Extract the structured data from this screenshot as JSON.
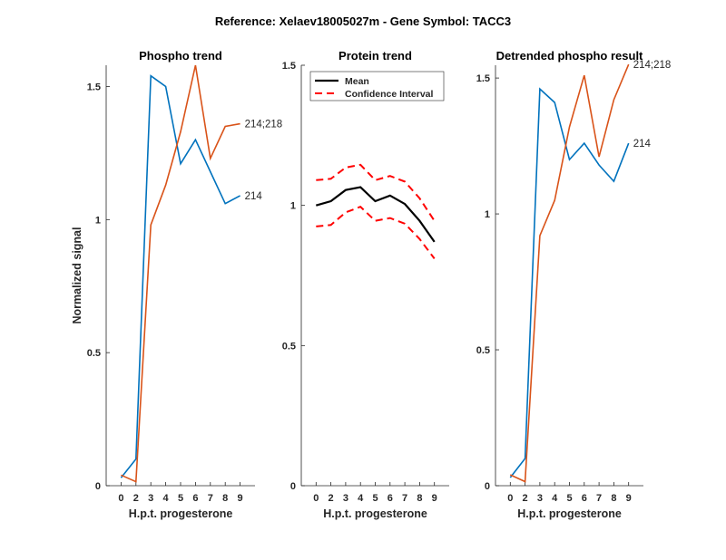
{
  "figure_title": "Reference:  Xelaev18005027m - Gene Symbol:  TACC3",
  "colors": {
    "blue": "#0072BD",
    "orange": "#D95319",
    "mean": "#000000",
    "ci": "#FF0000",
    "axis": "#262626"
  },
  "chart_data": [
    {
      "type": "line",
      "title": "Phospho trend",
      "xlabel": "H.p.t. progesterone",
      "ylabel": "Normalized signal",
      "categories": [
        "0",
        "2",
        "3",
        "4",
        "5",
        "6",
        "7",
        "8",
        "9"
      ],
      "ylim": [
        0,
        1.58
      ],
      "yticks": [
        0,
        0.5,
        1,
        1.5
      ],
      "ytick_labels": [
        "0",
        "0.5",
        "1",
        "1.5"
      ],
      "grid": false,
      "series": [
        {
          "name": "214",
          "color": "blue",
          "values": [
            0.03,
            0.1,
            1.54,
            1.5,
            1.21,
            1.3,
            1.18,
            1.06,
            1.09
          ]
        },
        {
          "name": "214;218",
          "color": "orange",
          "values": [
            0.04,
            0.015,
            0.98,
            1.13,
            1.33,
            1.58,
            1.23,
            1.35,
            1.36
          ]
        }
      ]
    },
    {
      "type": "line",
      "title": "Protein trend",
      "xlabel": "H.p.t. progesterone",
      "ylabel": "",
      "categories": [
        "0",
        "2",
        "3",
        "4",
        "5",
        "6",
        "7",
        "8",
        "9"
      ],
      "ylim": [
        0,
        1.5
      ],
      "yticks": [
        0,
        0.5,
        1,
        1.5
      ],
      "ytick_labels": [
        "0",
        "0.5",
        "1",
        "1.5"
      ],
      "grid": false,
      "legend": {
        "placement": "top-right",
        "entries": [
          "Mean",
          "Confidence Interval"
        ]
      },
      "series": [
        {
          "name": "Mean",
          "color": "mean",
          "values": [
            1.0,
            1.015,
            1.055,
            1.065,
            1.015,
            1.035,
            1.005,
            0.945,
            0.87
          ]
        },
        {
          "name": "Confidence Interval (upper)",
          "color": "ci",
          "dashed": true,
          "values": [
            1.09,
            1.095,
            1.135,
            1.145,
            1.09,
            1.105,
            1.085,
            1.025,
            0.945
          ]
        },
        {
          "name": "Confidence Interval (lower)",
          "color": "ci",
          "dashed": true,
          "values": [
            0.925,
            0.93,
            0.975,
            0.995,
            0.945,
            0.955,
            0.935,
            0.88,
            0.81
          ]
        }
      ]
    },
    {
      "type": "line",
      "title": "Detrended phospho result",
      "xlabel": "H.p.t. progesterone",
      "ylabel": "",
      "categories": [
        "0",
        "2",
        "3",
        "4",
        "5",
        "6",
        "7",
        "8",
        "9"
      ],
      "ylim": [
        0,
        1.547
      ],
      "yticks": [
        0,
        0.5,
        1,
        1.5
      ],
      "ytick_labels": [
        "0",
        "0.5",
        "1",
        "1.5"
      ],
      "grid": false,
      "series": [
        {
          "name": "214",
          "color": "blue",
          "values": [
            0.03,
            0.1,
            1.46,
            1.41,
            1.2,
            1.26,
            1.18,
            1.12,
            1.26
          ]
        },
        {
          "name": "214;218",
          "color": "orange",
          "values": [
            0.04,
            0.015,
            0.92,
            1.05,
            1.32,
            1.51,
            1.21,
            1.42,
            1.55
          ]
        }
      ]
    }
  ]
}
